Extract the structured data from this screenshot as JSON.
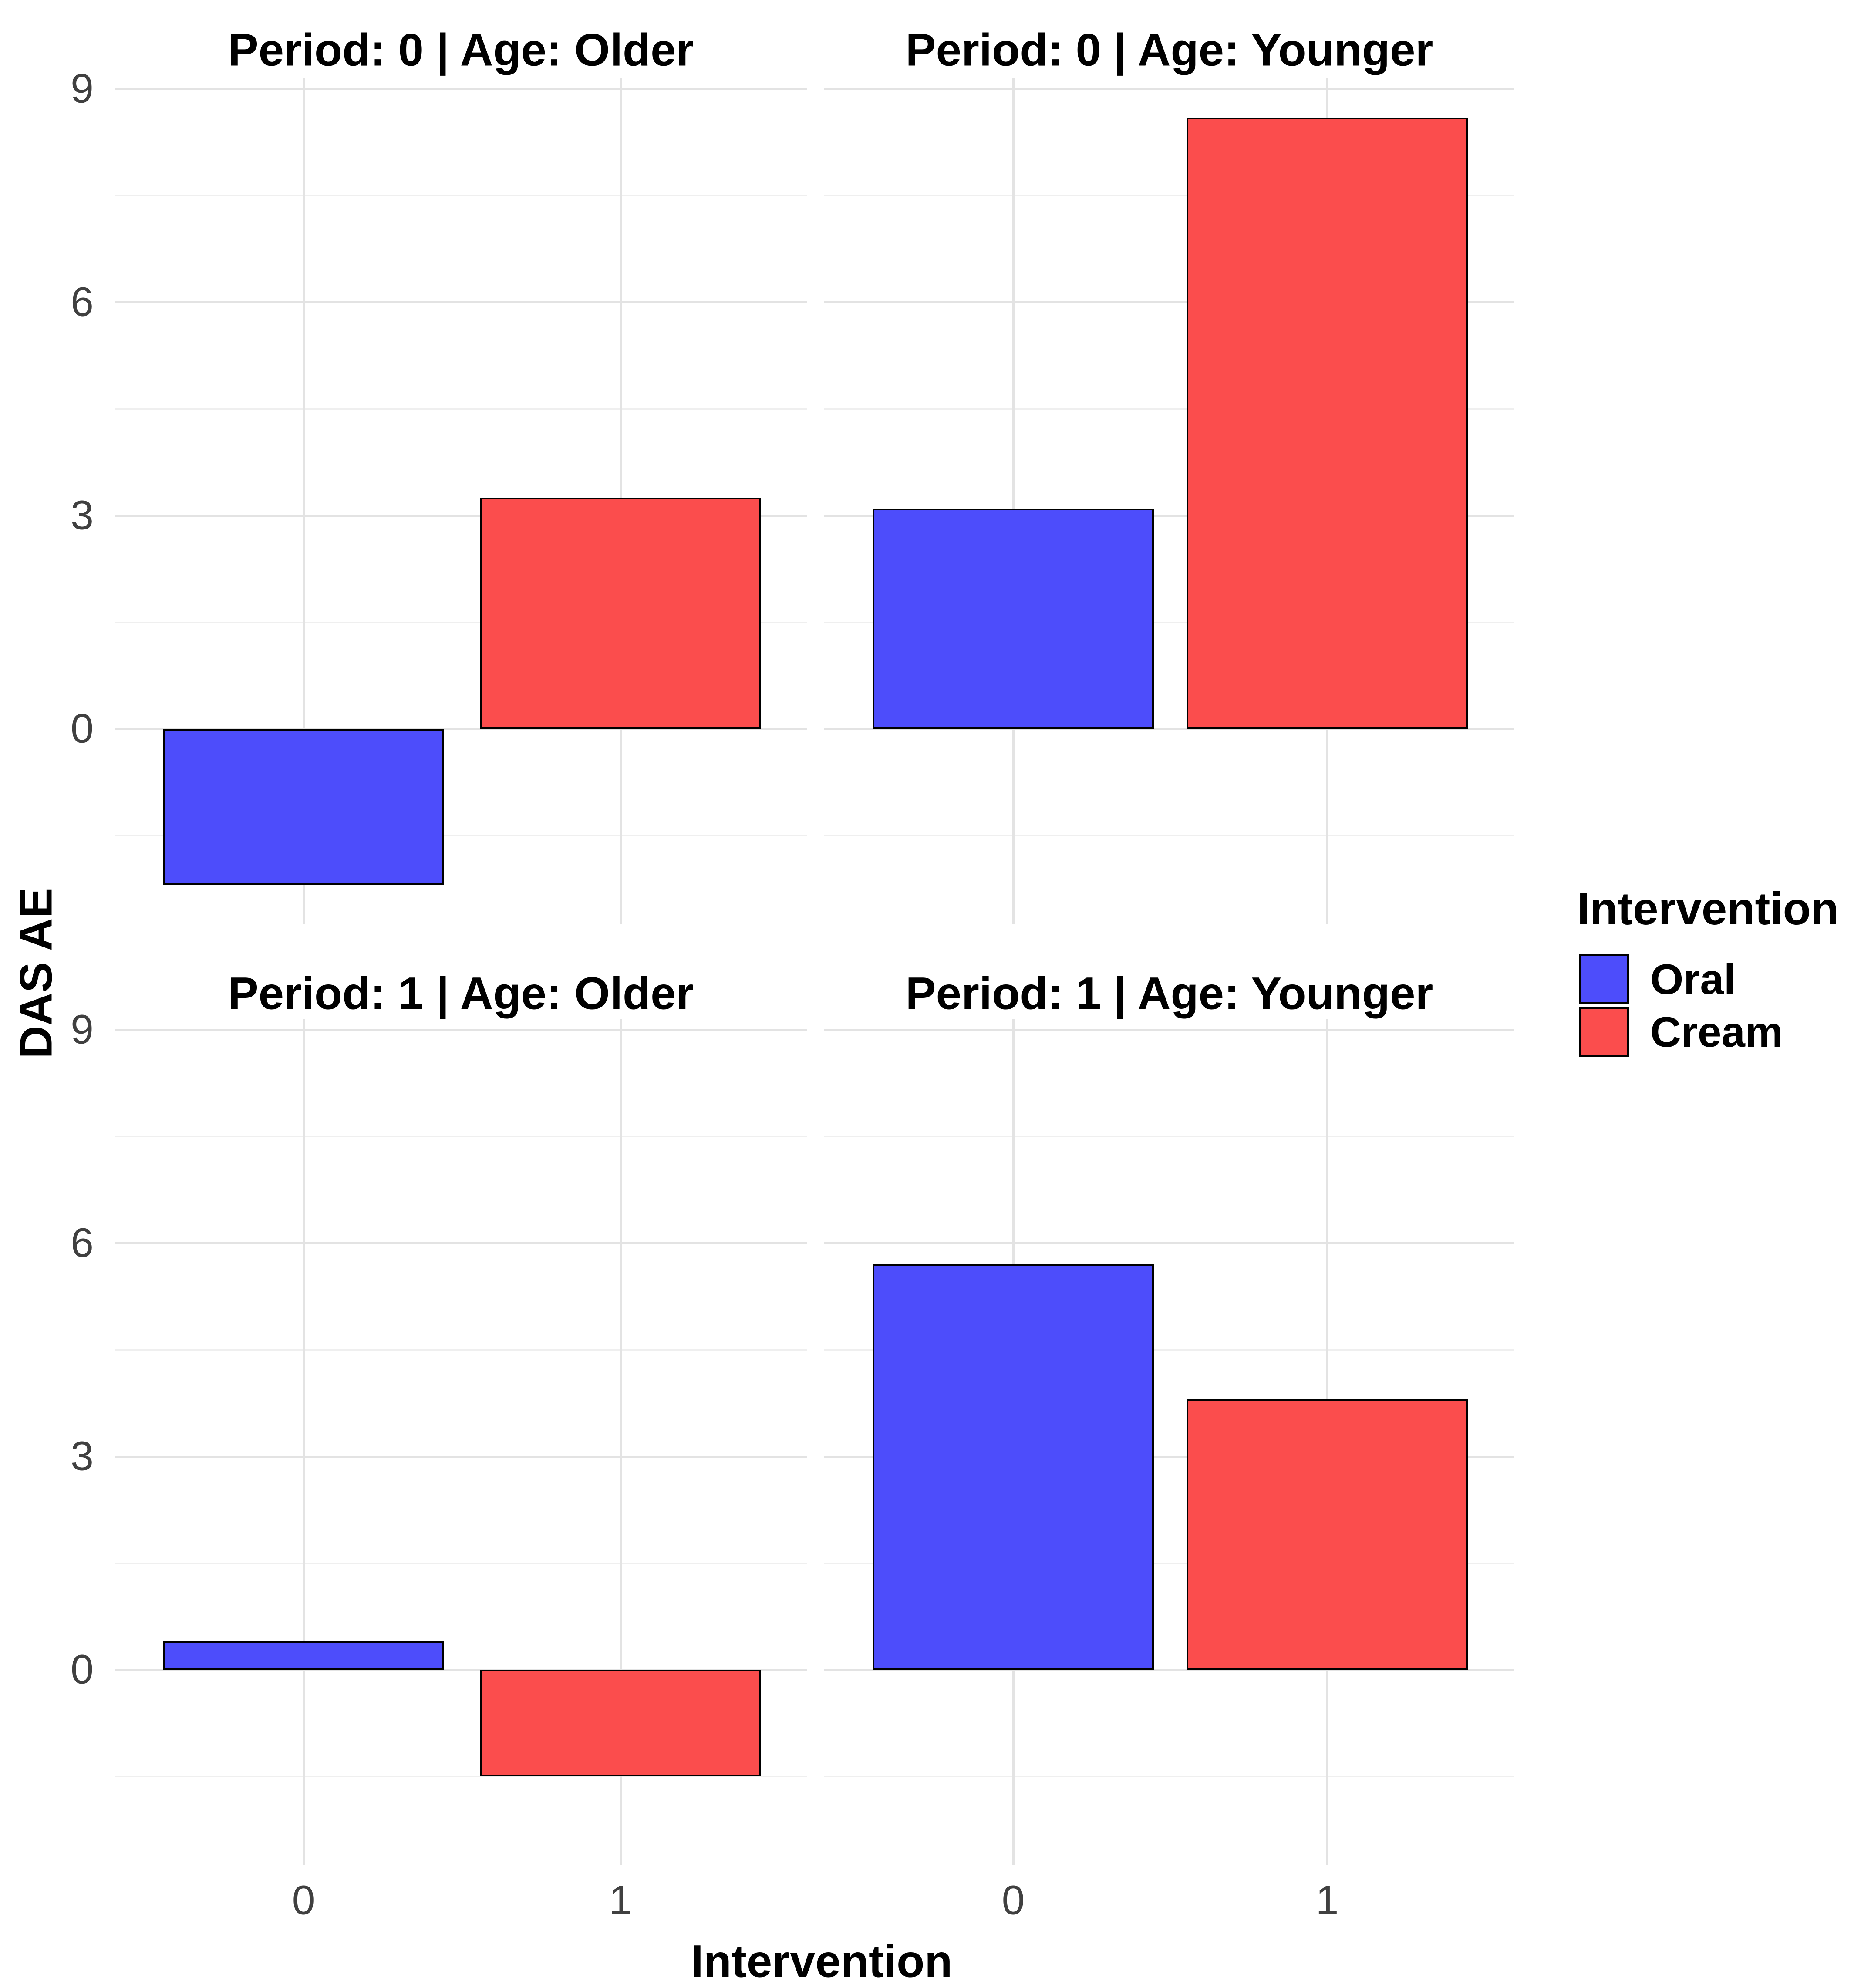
{
  "chart_data": {
    "type": "bar",
    "title": "",
    "xlabel": "Intervention",
    "ylabel": "DAS AE",
    "categories": [
      "0",
      "1"
    ],
    "ylim": [
      -2.7,
      9.1
    ],
    "y_breaks": [
      0,
      3,
      6,
      9
    ],
    "y_minor_breaks": [
      -1.5,
      1.5,
      4.5,
      7.5
    ],
    "grid": true,
    "legend_position": "right",
    "facets": [
      {
        "title": "Period: 0 | Age: Older",
        "period": "0",
        "age": "Older",
        "row": 0,
        "col": 0,
        "bars": [
          {
            "x": "0",
            "group": "Oral",
            "value": -2.2
          },
          {
            "x": "1",
            "group": "Cream",
            "value": 3.25
          }
        ]
      },
      {
        "title": "Period: 0 | Age: Younger",
        "period": "0",
        "age": "Younger",
        "row": 0,
        "col": 1,
        "bars": [
          {
            "x": "0",
            "group": "Oral",
            "value": 3.1
          },
          {
            "x": "1",
            "group": "Cream",
            "value": 8.6
          }
        ]
      },
      {
        "title": "Period: 1 | Age: Older",
        "period": "1",
        "age": "Older",
        "row": 1,
        "col": 0,
        "bars": [
          {
            "x": "0",
            "group": "Oral",
            "value": 0.4
          },
          {
            "x": "1",
            "group": "Cream",
            "value": -1.5
          }
        ]
      },
      {
        "title": "Period: 1 | Age: Younger",
        "period": "1",
        "age": "Younger",
        "row": 1,
        "col": 1,
        "bars": [
          {
            "x": "0",
            "group": "Oral",
            "value": 5.7
          },
          {
            "x": "1",
            "group": "Cream",
            "value": 3.8
          }
        ]
      }
    ]
  },
  "legend": {
    "title": "Intervention",
    "items": [
      {
        "label": "Oral",
        "color": "#4D4DFB"
      },
      {
        "label": "Cream",
        "color": "#FB4D4D"
      }
    ]
  },
  "colors": {
    "bar_border": "#000000",
    "grid_major": "#E3E3E3",
    "grid_minor": "#EFEFEF",
    "tick_text": "#404040",
    "title_text": "#000000",
    "background": "#FFFFFF"
  }
}
